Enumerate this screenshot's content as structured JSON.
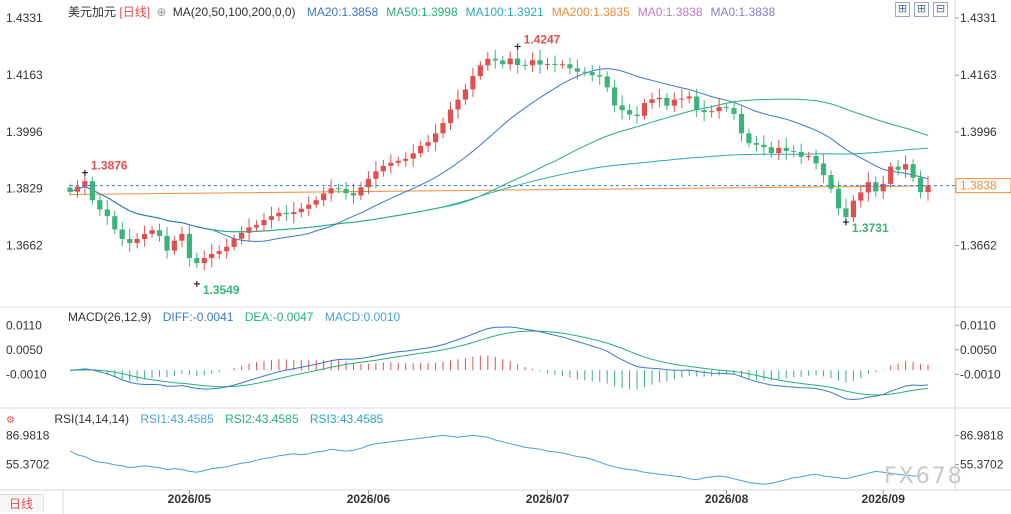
{
  "header": {
    "symbol": "美元加元",
    "period": "[日线]",
    "ma_label": "MA(20,50,100,200,0,0)",
    "ma_values": [
      {
        "label": "MA20:1.3858",
        "color": "#3a78c9"
      },
      {
        "label": "MA50:1.3998",
        "color": "#28b07a"
      },
      {
        "label": "MA100:1.3921",
        "color": "#2aa9b6"
      },
      {
        "label": "MA200:1.3835",
        "color": "#f28c3a"
      },
      {
        "label": "MA0:1.3838",
        "color": "#c07cc7"
      },
      {
        "label": "MA0:1.3838",
        "color": "#8a7cd6"
      }
    ]
  },
  "macd_header": {
    "label": "MACD(26,12,9)",
    "diff": "DIFF:-0.0041",
    "dea": "DEA:-0.0047",
    "macd": "MACD:0.0010"
  },
  "rsi_header": {
    "label": "RSI(14,14,14)",
    "rsi1": "RSI1:43.4585",
    "rsi2": "RSI2:43.4585",
    "rsi3": "RSI3:43.4585"
  },
  "period_tab": "日线",
  "watermark": "FX678",
  "colors": {
    "up": "#e14f4f",
    "down": "#3cb37a",
    "ma20": "#3a78c9",
    "ma50": "#28b07a",
    "ma100": "#2aa9b6",
    "ma200": "#f28c3a",
    "diff": "#3a78c9",
    "dea": "#28b07a",
    "rsi": "#4a9fe0",
    "price_line": "#3a78c9",
    "axis_text": "#333333"
  },
  "chart_data": {
    "type": "candlestick",
    "x_labels": [
      "2026/05",
      "2026/06",
      "2026/07",
      "2026/08",
      "2026/09"
    ],
    "x_label_index": [
      16,
      40,
      64,
      88,
      109
    ],
    "main": {
      "y_ticks": [
        "1.4331",
        "1.4163",
        "1.3996",
        "1.3829",
        "1.3662"
      ],
      "y_tick_values": [
        1.4331,
        1.4163,
        1.3996,
        1.3829,
        1.3662
      ],
      "ylim": [
        1.3531,
        1.4331
      ],
      "current_price": "1.3838",
      "current_price_value": 1.3838,
      "annotations": [
        {
          "text": "1.3876",
          "value": 1.3876,
          "index": 2,
          "color": "#e14f4f"
        },
        {
          "text": "1.4247",
          "value": 1.4247,
          "index": 60,
          "color": "#e14f4f"
        },
        {
          "text": "1.3549",
          "value": 1.3549,
          "index": 17,
          "color": "#3cb37a"
        },
        {
          "text": "1.3731",
          "value": 1.3731,
          "index": 104,
          "color": "#3cb37a"
        }
      ]
    },
    "macd": {
      "y_ticks": [
        "0.0110",
        "0.0050",
        "-0.0010"
      ],
      "y_tick_values": [
        0.011,
        0.005,
        -0.001
      ],
      "ylim": [
        -0.0085,
        0.0118
      ]
    },
    "rsi": {
      "y_ticks": [
        "86.9818",
        "55.3702"
      ],
      "y_tick_values": [
        86.9818,
        55.3702
      ],
      "ylim": [
        30,
        95
      ]
    },
    "series_close": [
      1.382,
      1.3835,
      1.3851,
      1.3795,
      1.3768,
      1.3748,
      1.3709,
      1.3681,
      1.3669,
      1.3681,
      1.3696,
      1.3707,
      1.369,
      1.3647,
      1.3676,
      1.3696,
      1.3625,
      1.361,
      1.3625,
      1.3637,
      1.3645,
      1.3658,
      1.3682,
      1.3699,
      1.3715,
      1.3722,
      1.3737,
      1.3748,
      1.3758,
      1.3754,
      1.376,
      1.377,
      1.3782,
      1.3795,
      1.3815,
      1.383,
      1.3828,
      1.3816,
      1.3809,
      1.3833,
      1.3858,
      1.388,
      1.3896,
      1.3905,
      1.3911,
      1.3917,
      1.3933,
      1.3955,
      1.3966,
      1.3992,
      1.4022,
      1.4062,
      1.4091,
      1.4121,
      1.416,
      1.4192,
      1.4211,
      1.4206,
      1.4195,
      1.4212,
      1.4193,
      1.4192,
      1.4207,
      1.4194,
      1.4196,
      1.4193,
      1.4195,
      1.4183,
      1.4173,
      1.4172,
      1.4163,
      1.4159,
      1.4127,
      1.4074,
      1.406,
      1.4047,
      1.4043,
      1.4081,
      1.4092,
      1.4096,
      1.4073,
      1.4091,
      1.4094,
      1.41,
      1.406,
      1.4054,
      1.4057,
      1.4069,
      1.4066,
      1.4049,
      1.3992,
      1.3963,
      1.3958,
      1.3951,
      1.3934,
      1.3949,
      1.394,
      1.3937,
      1.3923,
      1.3925,
      1.3903,
      1.3869,
      1.3829,
      1.3771,
      1.3745,
      1.3794,
      1.3818,
      1.3848,
      1.3821,
      1.3843,
      1.3894,
      1.3885,
      1.3901,
      1.3861,
      1.3819,
      1.3838
    ],
    "rsi_series": [
      70,
      66,
      64,
      60,
      58,
      57,
      55,
      54,
      52,
      53,
      54,
      53,
      52,
      50,
      51,
      50,
      48,
      47,
      49,
      51,
      52,
      53,
      55,
      57,
      58,
      60,
      62,
      63,
      65,
      66,
      67,
      66,
      67,
      69,
      70,
      72,
      71,
      70,
      71,
      73,
      76,
      78,
      79,
      80,
      81,
      82,
      83,
      84,
      85,
      86,
      87,
      86,
      85,
      86,
      87,
      86,
      85,
      82,
      80,
      78,
      76,
      74,
      73,
      72,
      70,
      69,
      68,
      66,
      64,
      63,
      61,
      58,
      55,
      53,
      51,
      50,
      49,
      47,
      46,
      45,
      44,
      43,
      42,
      40,
      39,
      41,
      42,
      43,
      42,
      40,
      38,
      36,
      35,
      34,
      35,
      37,
      39,
      41,
      42,
      44,
      45,
      43,
      42,
      41,
      40,
      42,
      44,
      46,
      48,
      47,
      46,
      45,
      44,
      43,
      43
    ]
  }
}
